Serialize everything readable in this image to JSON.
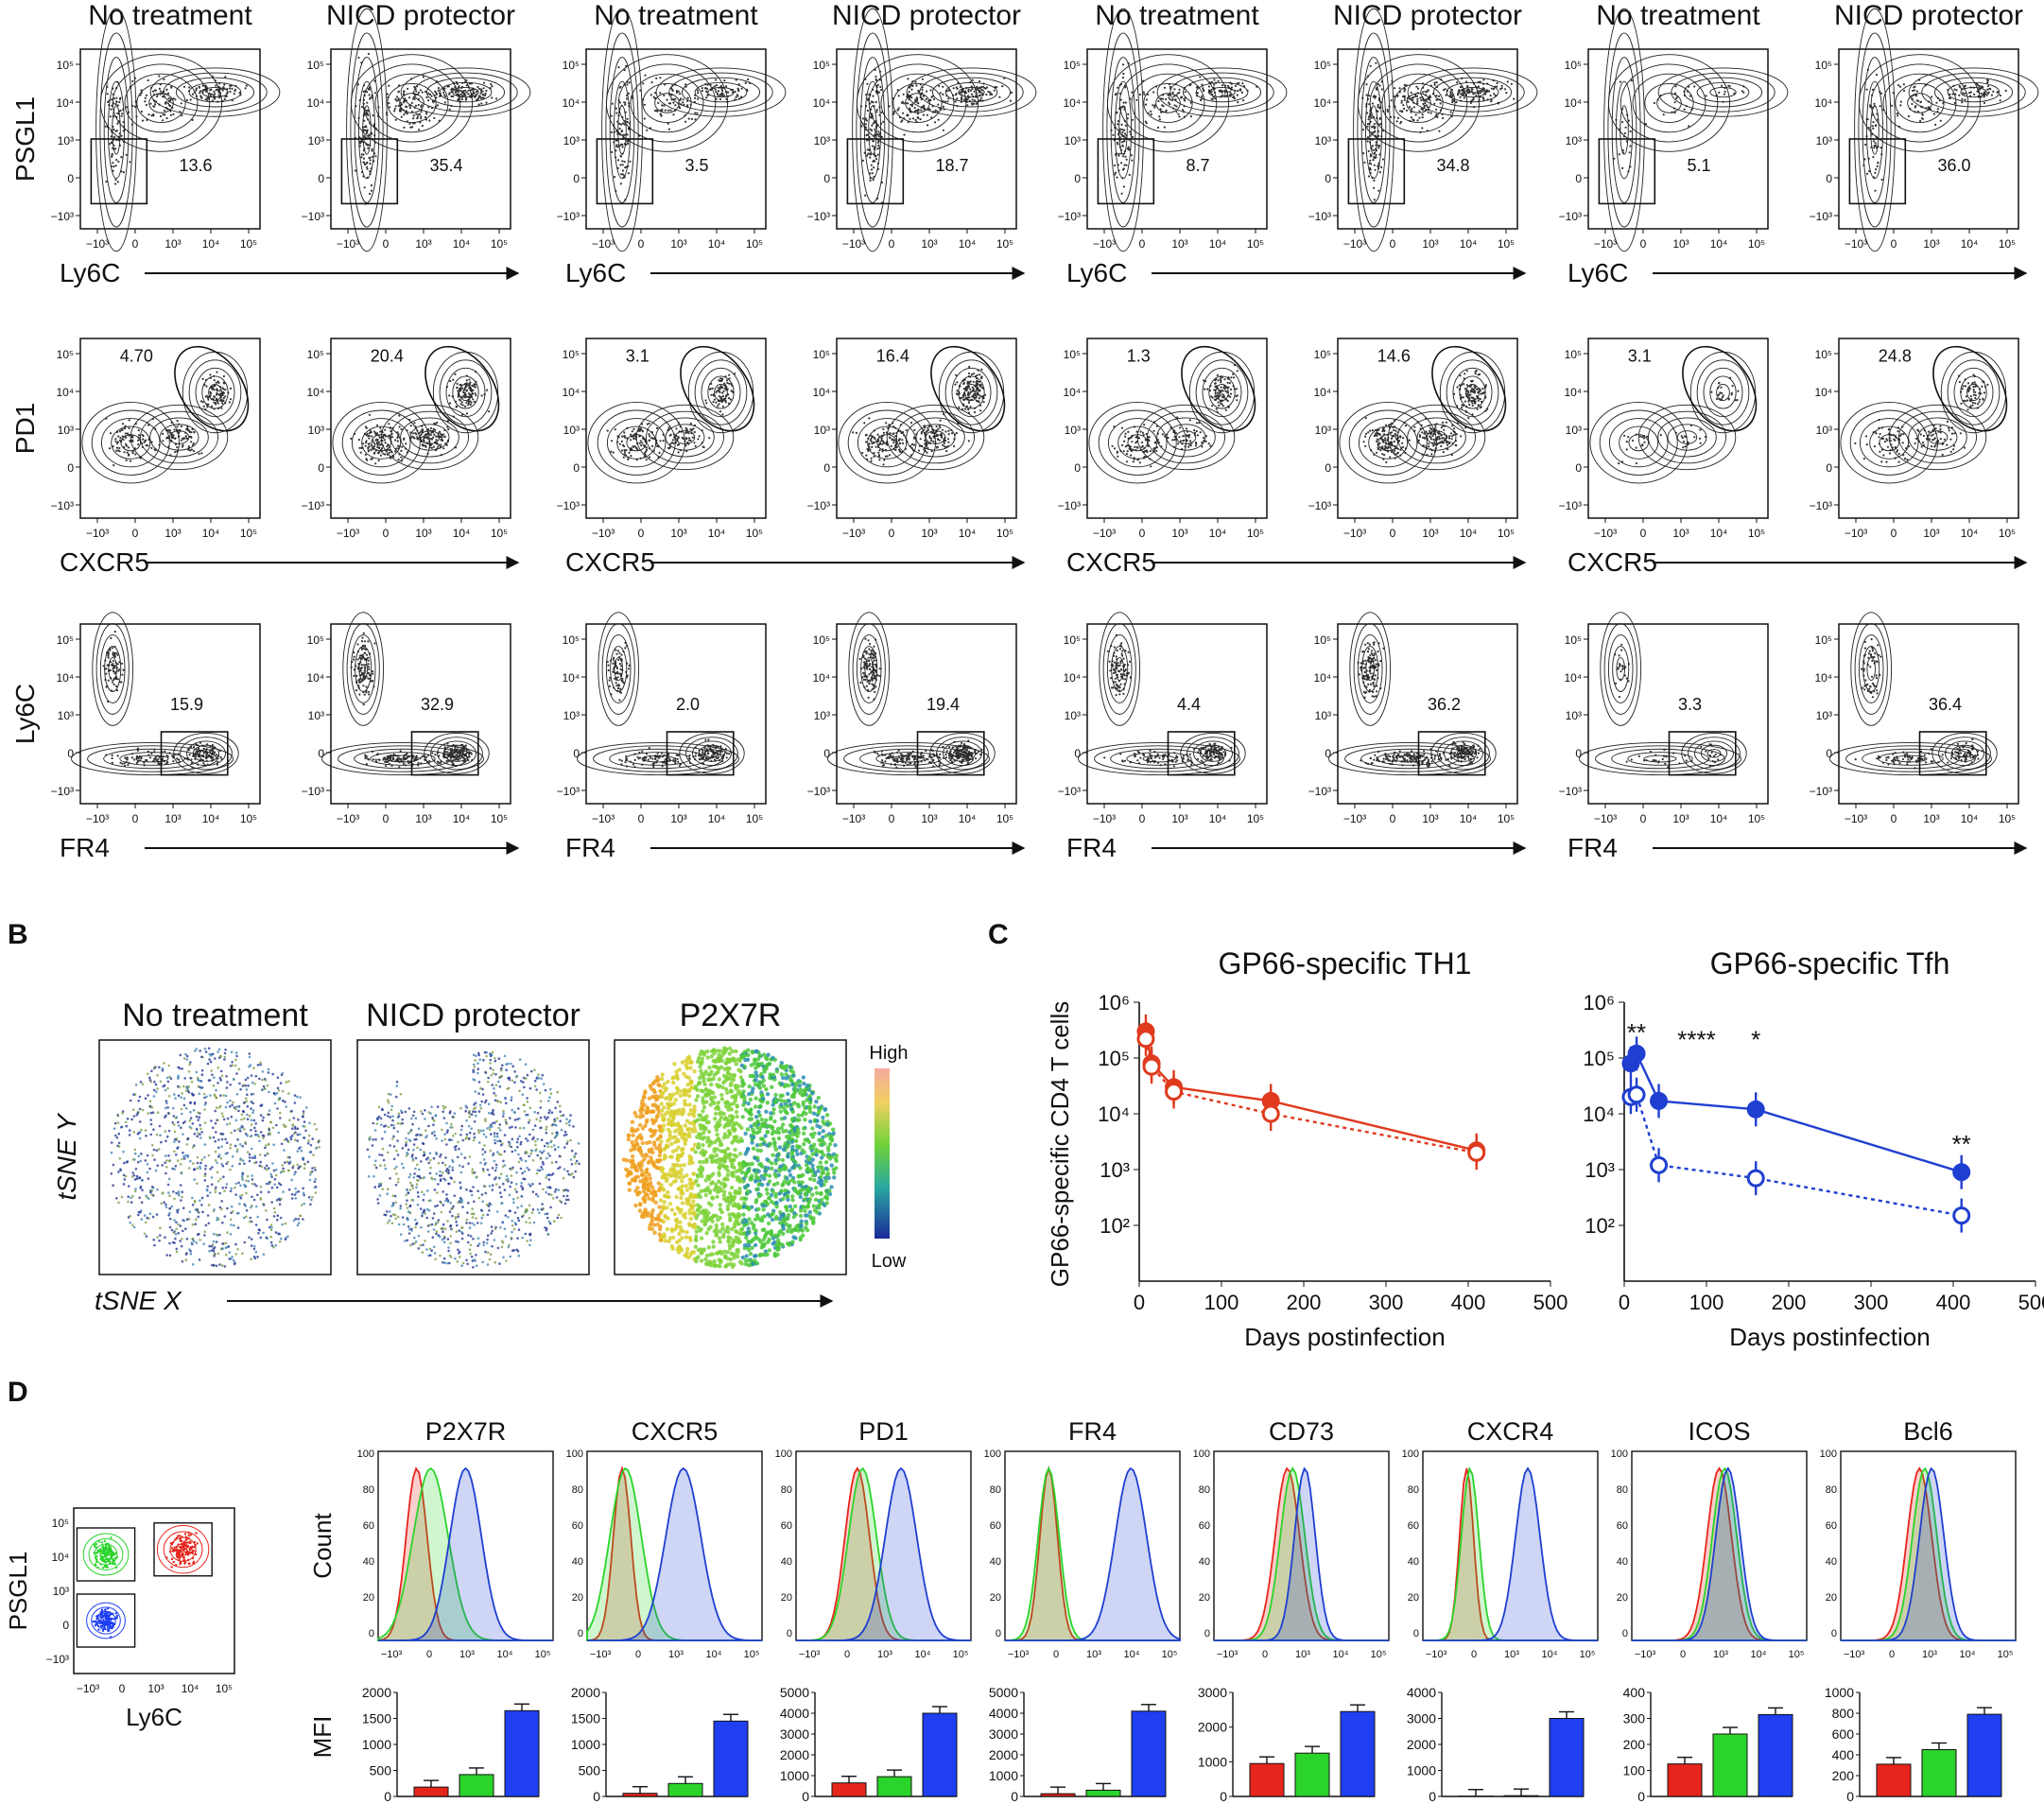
{
  "panel_letters": {
    "b": "B",
    "c": "C",
    "d": "D"
  },
  "panel_a": {
    "column_titles": [
      "No treatment",
      "NICD protector",
      "No treatment",
      "NICD protector",
      "No treatment",
      "NICD protector",
      "No treatment",
      "NICD protector"
    ],
    "rows": [
      {
        "ylabel": "PSGL1",
        "xlabel": "Ly6C",
        "values": [
          "13.6",
          "35.4",
          "3.5",
          "18.7",
          "8.7",
          "34.8",
          "5.1",
          "36.0"
        ]
      },
      {
        "ylabel": "PD1",
        "xlabel": "CXCR5",
        "values": [
          "4.70",
          "20.4",
          "3.1",
          "16.4",
          "1.3",
          "14.6",
          "3.1",
          "24.8"
        ]
      },
      {
        "ylabel": "Ly6C",
        "xlabel": "FR4",
        "values": [
          "15.9",
          "32.9",
          "2.0",
          "19.4",
          "4.4",
          "36.2",
          "3.3",
          "36.4"
        ]
      }
    ],
    "tick_labels": [
      "10⁵",
      "10⁴",
      "10³",
      "0",
      "−10³"
    ],
    "x_tick_labels": [
      "−10³",
      "0",
      "10³",
      "10⁴",
      "10⁵"
    ]
  },
  "panel_b": {
    "titles": [
      "No treatment",
      "NICD protector",
      "P2X7R"
    ],
    "ylabel": "tSNE Y",
    "xlabel": "tSNE X",
    "scale_high": "High",
    "scale_low": "Low"
  },
  "panel_c": {
    "ylabel": "GP66-specific CD4 T cells",
    "xlabel": "Days postinfection",
    "y_ticks": [
      "10⁶",
      "10⁵",
      "10⁴",
      "10³",
      "10²"
    ],
    "x_ticks": [
      "0",
      "100",
      "200",
      "300",
      "400",
      "500"
    ],
    "chart_data": [
      {
        "type": "line",
        "title": "GP66-specific TH1",
        "xlabel": "Days postinfection",
        "ylabel": "GP66-specific CD4 T cells",
        "xlim": [
          0,
          500
        ],
        "ylim": [
          10,
          1000000
        ],
        "y_scale": "log",
        "series": [
          {
            "x": [
              8,
              15,
              42,
              160,
              410
            ],
            "y": [
              300000,
              80000,
              30000,
              17000,
              2200
            ],
            "color": "#e03a1e"
          },
          {
            "x": [
              8,
              15,
              42,
              160,
              410
            ],
            "y": [
              220000,
              70000,
              25000,
              10000,
              2000
            ],
            "color": "#e03a1e",
            "style": "dotted"
          }
        ]
      },
      {
        "type": "line",
        "title": "GP66-specific Tfh",
        "xlabel": "Days postinfection",
        "ylabel": "GP66-specific CD4 T cells",
        "xlim": [
          0,
          500
        ],
        "ylim": [
          10,
          1000000
        ],
        "y_scale": "log",
        "annotations": [
          "**",
          "****",
          "*",
          "**"
        ],
        "series": [
          {
            "x": [
              8,
              15,
              42,
              160,
              410
            ],
            "y": [
              80000,
              120000,
              17000,
              12000,
              900
            ],
            "color": "#1f3fd0"
          },
          {
            "x": [
              8,
              15,
              42,
              160,
              410
            ],
            "y": [
              20000,
              22000,
              1200,
              700,
              150
            ],
            "color": "#1f3fd0",
            "style": "dotted"
          }
        ]
      }
    ]
  },
  "panel_d": {
    "overview": {
      "ylabel": "PSGL1",
      "xlabel": "Ly6C"
    },
    "markers": [
      "P2X7R",
      "CXCR5",
      "PD1",
      "FR4",
      "CD73",
      "CXCR4",
      "ICOS",
      "Bcl6"
    ],
    "hist_ylabel": "Count",
    "bar_ylabel": "MFI",
    "bar_colors": [
      "#e6251c",
      "#2ad42a",
      "#1f3ff0"
    ],
    "chart_data": [
      {
        "type": "bar",
        "title": "P2X7R",
        "ylabel": "MFI",
        "ylim": [
          0,
          2000
        ],
        "y_ticks": [
          "2000",
          "1500",
          "1000",
          "500",
          "0"
        ],
        "values": [
          180,
          420,
          1650
        ]
      },
      {
        "type": "bar",
        "title": "CXCR5",
        "ylabel": "MFI",
        "ylim": [
          0,
          2000
        ],
        "y_ticks": [
          "2000",
          "1500",
          "1000",
          "500",
          "0"
        ],
        "values": [
          60,
          250,
          1450
        ]
      },
      {
        "type": "bar",
        "title": "PD1",
        "ylabel": "MFI",
        "ylim": [
          0,
          5000
        ],
        "y_ticks": [
          "5000",
          "4000",
          "3000",
          "2000",
          "1000",
          "0"
        ],
        "values": [
          650,
          950,
          4000
        ]
      },
      {
        "type": "bar",
        "title": "FR4",
        "ylabel": "MFI",
        "ylim": [
          0,
          5000
        ],
        "y_ticks": [
          "5000",
          "4000",
          "3000",
          "2000",
          "1000",
          "0"
        ],
        "values": [
          130,
          300,
          4100
        ]
      },
      {
        "type": "bar",
        "title": "CD73",
        "ylabel": "MFI",
        "ylim": [
          0,
          3000
        ],
        "y_ticks": [
          "3000",
          "2000",
          "1000",
          "0"
        ],
        "values": [
          950,
          1250,
          2450
        ]
      },
      {
        "type": "bar",
        "title": "CXCR4",
        "ylabel": "MFI",
        "ylim": [
          0,
          4000
        ],
        "y_ticks": [
          "4000",
          "3000",
          "2000",
          "1000",
          "0"
        ],
        "values": [
          10,
          30,
          3000
        ]
      },
      {
        "type": "bar",
        "title": "ICOS",
        "ylabel": "MFI",
        "ylim": [
          0,
          400
        ],
        "y_ticks": [
          "400",
          "300",
          "200",
          "100",
          "0"
        ],
        "values": [
          125,
          240,
          315
        ]
      },
      {
        "type": "bar",
        "title": "Bcl6",
        "ylabel": "MFI",
        "ylim": [
          0,
          1000
        ],
        "y_ticks": [
          "1000",
          "800",
          "600",
          "400",
          "200",
          "0"
        ],
        "values": [
          310,
          450,
          790
        ]
      }
    ]
  }
}
